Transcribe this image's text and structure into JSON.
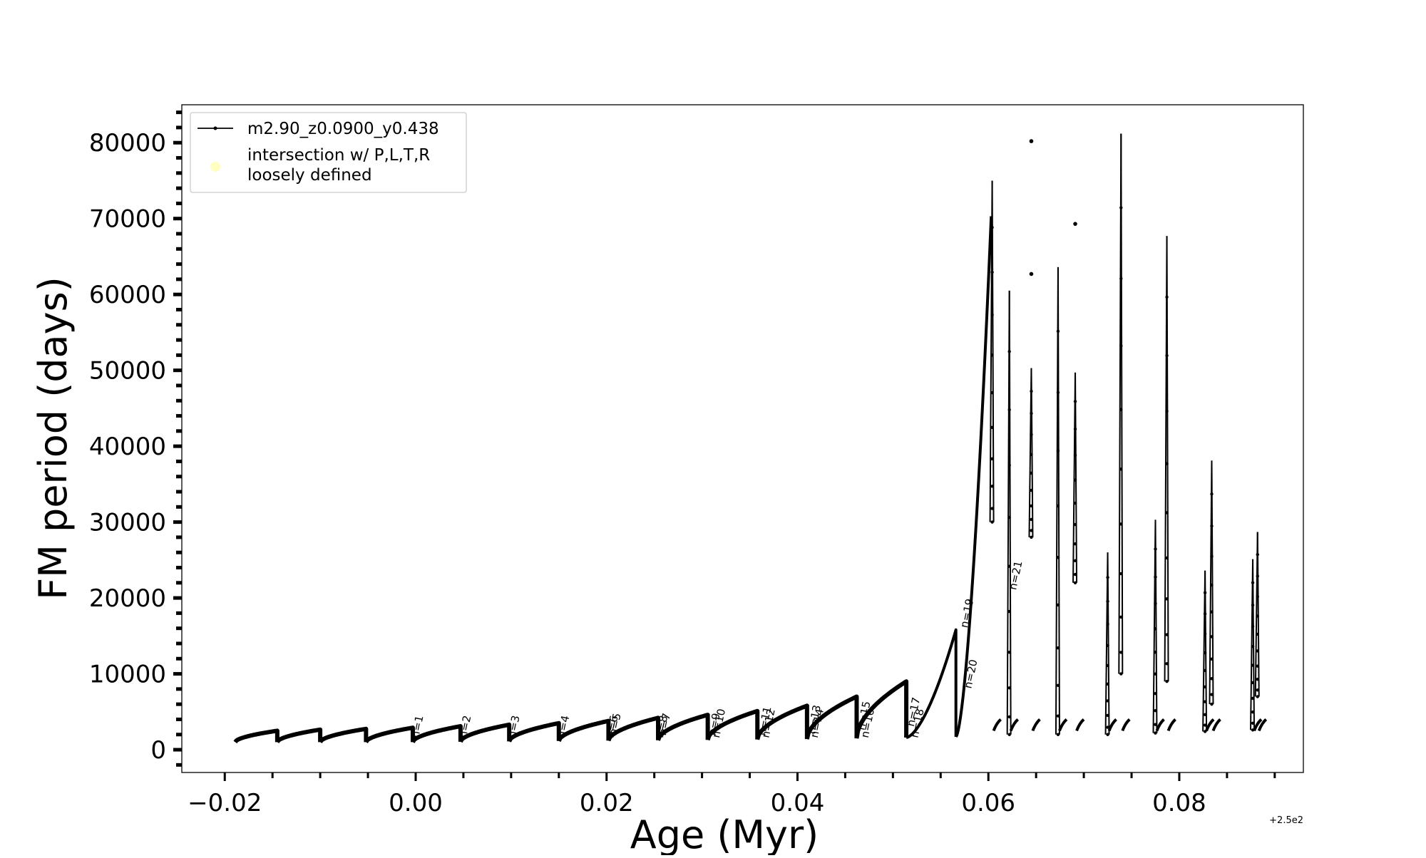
{
  "chart_data": {
    "type": "line",
    "title": "",
    "xlabel": "Age (Myr)",
    "ylabel": "FM period (days)",
    "x_offset_label": "+2.5e2",
    "xlim": [
      -0.0245,
      0.093
    ],
    "ylim": [
      -3000,
      85000
    ],
    "x_ticks": [
      {
        "value": -0.02,
        "label": "−0.02"
      },
      {
        "value": 0.0,
        "label": "0.00"
      },
      {
        "value": 0.02,
        "label": "0.02"
      },
      {
        "value": 0.04,
        "label": "0.04"
      },
      {
        "value": 0.06,
        "label": "0.06"
      },
      {
        "value": 0.08,
        "label": "0.08"
      }
    ],
    "y_ticks": [
      {
        "value": 0,
        "label": "0"
      },
      {
        "value": 10000,
        "label": "10000"
      },
      {
        "value": 20000,
        "label": "20000"
      },
      {
        "value": 30000,
        "label": "30000"
      },
      {
        "value": 40000,
        "label": "40000"
      },
      {
        "value": 50000,
        "label": "50000"
      },
      {
        "value": 60000,
        "label": "60000"
      },
      {
        "value": 70000,
        "label": "70000"
      },
      {
        "value": 80000,
        "label": "80000"
      }
    ],
    "legend_position": "top-left",
    "series": [
      {
        "name": "m2.90_z0.0900_y0.438",
        "color": "#000000",
        "cycles": [
          {
            "start": -0.0189,
            "end": -0.0145,
            "low": 1000,
            "high": 2500
          },
          {
            "start": -0.0145,
            "end": -0.01,
            "low": 1000,
            "high": 2650
          },
          {
            "start": -0.01,
            "end": -0.0052,
            "low": 1000,
            "high": 2750
          },
          {
            "start": -0.0052,
            "end": -0.0003,
            "low": 1000,
            "high": 2900
          },
          {
            "start": -0.0003,
            "end": 0.0047,
            "low": 1000,
            "high": 3100
          },
          {
            "start": 0.0047,
            "end": 0.0098,
            "low": 1050,
            "high": 3300
          },
          {
            "start": 0.0098,
            "end": 0.015,
            "low": 1100,
            "high": 3500
          },
          {
            "start": 0.015,
            "end": 0.0202,
            "low": 1150,
            "high": 3800
          },
          {
            "start": 0.0202,
            "end": 0.0254,
            "low": 1200,
            "high": 4200
          },
          {
            "start": 0.0254,
            "end": 0.0306,
            "low": 1250,
            "high": 4600
          },
          {
            "start": 0.0306,
            "end": 0.0358,
            "low": 1300,
            "high": 5100
          },
          {
            "start": 0.0358,
            "end": 0.041,
            "low": 1350,
            "high": 5800
          },
          {
            "start": 0.041,
            "end": 0.0462,
            "low": 1400,
            "high": 7000
          },
          {
            "start": 0.0462,
            "end": 0.0514,
            "low": 1500,
            "high": 9000
          },
          {
            "start": 0.0514,
            "end": 0.0566,
            "low": 1600,
            "high": 15800
          },
          {
            "start": 0.0566,
            "end": 0.0603,
            "low": 1700,
            "high": 70300
          }
        ],
        "spikes": [
          {
            "x": 0.0604,
            "base": 30000,
            "top": 75000
          },
          {
            "x": 0.0622,
            "base": 2000,
            "top": 60500
          },
          {
            "x": 0.0645,
            "base": 28000,
            "top": 50300
          },
          {
            "x": 0.0673,
            "base": 2000,
            "top": 63600
          },
          {
            "x": 0.0691,
            "base": 22000,
            "top": 49700
          },
          {
            "x": 0.0725,
            "base": 2000,
            "top": 26000
          },
          {
            "x": 0.0739,
            "base": 10000,
            "top": 81200
          },
          {
            "x": 0.0775,
            "base": 2200,
            "top": 30300
          },
          {
            "x": 0.0787,
            "base": 9000,
            "top": 67700
          },
          {
            "x": 0.0827,
            "base": 2400,
            "top": 23600
          },
          {
            "x": 0.0834,
            "base": 6000,
            "top": 38100
          },
          {
            "x": 0.0877,
            "base": 2600,
            "top": 25100
          },
          {
            "x": 0.0882,
            "base": 7000,
            "top": 28700
          }
        ],
        "isolated_points": [
          {
            "x": 0.0645,
            "y": 80200
          },
          {
            "x": 0.0645,
            "y": 62700
          },
          {
            "x": 0.0691,
            "y": 69300
          }
        ]
      },
      {
        "name": "intersection w/ P,L,T,R loosely defined",
        "color": "#ffff99",
        "points": []
      }
    ],
    "annotations": [
      {
        "text": "n=1",
        "x": 0.0003,
        "y": 1500
      },
      {
        "text": "n=2",
        "x": 0.0053,
        "y": 1500
      },
      {
        "text": "n=3",
        "x": 0.0104,
        "y": 1500
      },
      {
        "text": "n=4",
        "x": 0.0156,
        "y": 1500
      },
      {
        "text": "n=5",
        "x": 0.021,
        "y": 1800
      },
      {
        "text": "n=6",
        "x": 0.0207,
        "y": 1500
      },
      {
        "text": "n=7",
        "x": 0.0262,
        "y": 1800
      },
      {
        "text": "n=8",
        "x": 0.0259,
        "y": 1500
      },
      {
        "text": "n=9",
        "x": 0.0314,
        "y": 1800
      },
      {
        "text": "n=10",
        "x": 0.0318,
        "y": 1500
      },
      {
        "text": "n=11",
        "x": 0.0366,
        "y": 1800
      },
      {
        "text": "n=12",
        "x": 0.037,
        "y": 1500
      },
      {
        "text": "n=13",
        "x": 0.0418,
        "y": 2000
      },
      {
        "text": "n=14",
        "x": 0.0421,
        "y": 1500
      },
      {
        "text": "n=15",
        "x": 0.047,
        "y": 2500
      },
      {
        "text": "n=16",
        "x": 0.0474,
        "y": 1500
      },
      {
        "text": "n=17",
        "x": 0.0522,
        "y": 3000
      },
      {
        "text": "n=18",
        "x": 0.0526,
        "y": 1500
      },
      {
        "text": "n=19",
        "x": 0.0578,
        "y": 16000
      },
      {
        "text": "n=20",
        "x": 0.0582,
        "y": 8000
      },
      {
        "text": "n=21",
        "x": 0.0629,
        "y": 21000
      }
    ]
  }
}
